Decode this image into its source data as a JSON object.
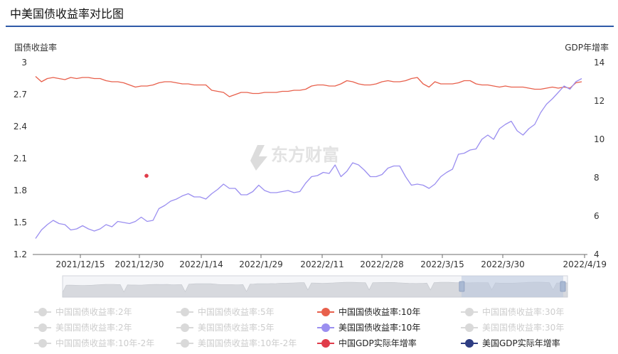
{
  "title": "中美国债收益率对比图",
  "watermark": "东方财富",
  "chart_data": {
    "type": "line",
    "y_left_label": "国债收益率",
    "y_right_label": "GDP年增率",
    "y_left_ticks": [
      "3",
      "2.7",
      "2.4",
      "2.1",
      "1.8",
      "1.5",
      "1.2"
    ],
    "y_left_range": [
      1.2,
      3.0
    ],
    "y_right_ticks": [
      "14",
      "12",
      "10",
      "8",
      "6",
      "4"
    ],
    "y_right_range": [
      4,
      14
    ],
    "x_tick_labels": [
      "2021/12/15",
      "2021/12/30",
      "2022/1/14",
      "2022/1/29",
      "2022/2/11",
      "2022/2/28",
      "2022/3/15",
      "2022/3/30",
      "2022/4/19"
    ],
    "series": [
      {
        "name": "中国国债收益率:10年",
        "color": "#e8604c",
        "axis": "left",
        "values": [
          2.87,
          2.82,
          2.85,
          2.86,
          2.85,
          2.84,
          2.86,
          2.85,
          2.86,
          2.86,
          2.85,
          2.85,
          2.83,
          2.82,
          2.82,
          2.81,
          2.79,
          2.77,
          2.78,
          2.78,
          2.79,
          2.81,
          2.82,
          2.82,
          2.81,
          2.8,
          2.8,
          2.79,
          2.79,
          2.79,
          2.74,
          2.73,
          2.72,
          2.68,
          2.7,
          2.72,
          2.72,
          2.71,
          2.71,
          2.72,
          2.72,
          2.72,
          2.73,
          2.73,
          2.74,
          2.74,
          2.75,
          2.78,
          2.79,
          2.79,
          2.78,
          2.78,
          2.8,
          2.83,
          2.82,
          2.8,
          2.79,
          2.79,
          2.8,
          2.82,
          2.83,
          2.82,
          2.82,
          2.83,
          2.85,
          2.86,
          2.8,
          2.77,
          2.82,
          2.8,
          2.8,
          2.8,
          2.81,
          2.83,
          2.83,
          2.8,
          2.79,
          2.79,
          2.78,
          2.77,
          2.78,
          2.77,
          2.77,
          2.77,
          2.76,
          2.75,
          2.75,
          2.76,
          2.77,
          2.76,
          2.77,
          2.76,
          2.81,
          2.82
        ]
      },
      {
        "name": "美国国债收益率:10年",
        "color": "#9b8ff0",
        "axis": "left",
        "values": [
          1.35,
          1.43,
          1.48,
          1.52,
          1.49,
          1.48,
          1.43,
          1.44,
          1.47,
          1.44,
          1.42,
          1.44,
          1.48,
          1.46,
          1.51,
          1.5,
          1.49,
          1.51,
          1.55,
          1.51,
          1.52,
          1.63,
          1.66,
          1.7,
          1.72,
          1.75,
          1.77,
          1.74,
          1.74,
          1.72,
          1.77,
          1.81,
          1.86,
          1.82,
          1.82,
          1.76,
          1.76,
          1.79,
          1.85,
          1.8,
          1.78,
          1.78,
          1.79,
          1.8,
          1.78,
          1.79,
          1.87,
          1.93,
          1.94,
          1.97,
          1.96,
          2.04,
          1.93,
          1.98,
          2.06,
          2.04,
          1.99,
          1.93,
          1.93,
          1.95,
          2.01,
          2.03,
          2.03,
          1.93,
          1.85,
          1.86,
          1.85,
          1.82,
          1.86,
          1.93,
          1.97,
          2.0,
          2.14,
          2.15,
          2.18,
          2.19,
          2.28,
          2.32,
          2.28,
          2.38,
          2.42,
          2.45,
          2.36,
          2.32,
          2.38,
          2.42,
          2.53,
          2.61,
          2.66,
          2.72,
          2.78,
          2.75,
          2.82,
          2.85
        ]
      },
      {
        "name": "中国GDP实际年增率",
        "color": "#e03c4a",
        "axis": "right",
        "points": [
          {
            "x_label": "2021/12/30",
            "value": 8.1
          }
        ]
      }
    ]
  },
  "legend": {
    "rows": [
      [
        {
          "label": "中国国债收益率:2年",
          "color": "#d9d9d9",
          "active": false
        },
        {
          "label": "中国国债收益率:5年",
          "color": "#d9d9d9",
          "active": false
        },
        {
          "label": "中国国债收益率:10年",
          "color": "#e8604c",
          "active": true
        },
        {
          "label": "中国国债收益率:30年",
          "color": "#d9d9d9",
          "active": false
        }
      ],
      [
        {
          "label": "美国国债收益率:2年",
          "color": "#d9d9d9",
          "active": false
        },
        {
          "label": "美国国债收益率:5年",
          "color": "#d9d9d9",
          "active": false
        },
        {
          "label": "美国国债收益率:10年",
          "color": "#9b8ff0",
          "active": true
        },
        {
          "label": "美国国债收益率:30年",
          "color": "#d9d9d9",
          "active": false
        }
      ],
      [
        {
          "label": "中国国债收益率:10年-2年",
          "color": "#d9d9d9",
          "active": false
        },
        {
          "label": "美国国债收益率:10年-2年",
          "color": "#d9d9d9",
          "active": false
        },
        {
          "label": "中国GDP实际年增率",
          "color": "#e03c4a",
          "active": true
        },
        {
          "label": "美国GDP实际年增率",
          "color": "#2e3d82",
          "active": true
        }
      ]
    ]
  },
  "data_zoom": {
    "start_fraction": 0.79,
    "end_fraction": 1.0
  }
}
